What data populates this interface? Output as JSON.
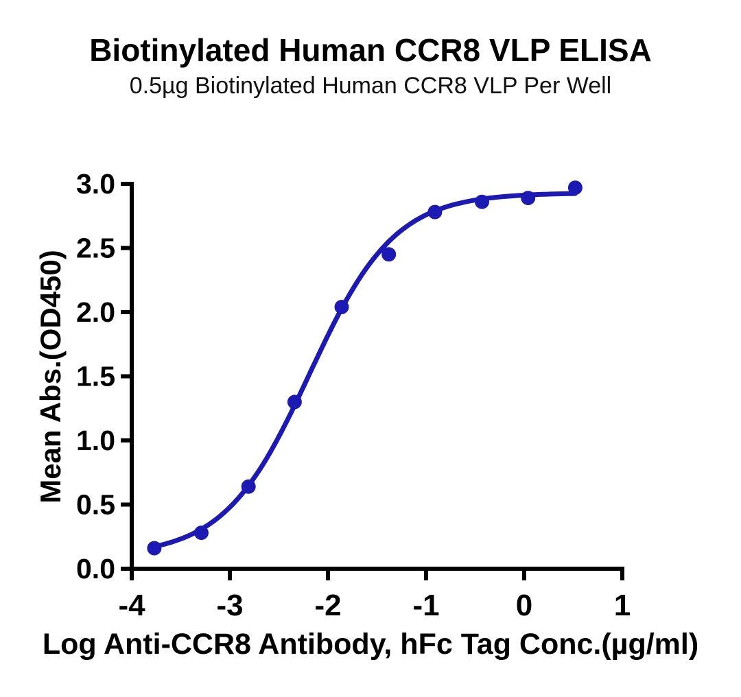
{
  "figure": {
    "background": "#ffffff",
    "text_color": "#000000"
  },
  "chart_data": {
    "type": "scatter",
    "title": "Biotinylated Human CCR8 VLP ELISA",
    "subtitle": "0.5µg Biotinylated Human CCR8 VLP Per Well",
    "xlabel": "Log Anti-CCR8 Antibody, hFc Tag Conc.(µg/ml)",
    "ylabel": "Mean Abs.(OD450)",
    "xlim": [
      -4,
      1
    ],
    "ylim": [
      0,
      3
    ],
    "grid": false,
    "legend_position": "none",
    "axis_color": "#000000",
    "x_ticks": {
      "values": [
        -4,
        -3,
        -2,
        -1,
        0,
        1
      ],
      "labels": [
        "-4",
        "-3",
        "-2",
        "-1",
        "0",
        "1"
      ]
    },
    "y_ticks": {
      "values": [
        0,
        0.5,
        1,
        1.5,
        2,
        2.5,
        3
      ],
      "labels": [
        "0.0",
        "0.5",
        "1.0",
        "1.5",
        "2.0",
        "2.5",
        "3.0"
      ]
    },
    "series": [
      {
        "name": "Anti-CCR8 Antibody, hFc Tag",
        "color": "#1c1ab3",
        "marker": "circle",
        "x": [
          -3.77,
          -3.29,
          -2.81,
          -2.34,
          -1.86,
          -1.38,
          -0.91,
          -0.43,
          0.04,
          0.52
        ],
        "y": [
          0.16,
          0.28,
          0.64,
          1.3,
          2.04,
          2.45,
          2.78,
          2.86,
          2.89,
          2.97
        ],
        "fit_curve": {
          "model": "4PL",
          "bottom": 0.1,
          "top": 2.93,
          "logEC50": -2.19,
          "hill": 1.0
        }
      }
    ]
  }
}
